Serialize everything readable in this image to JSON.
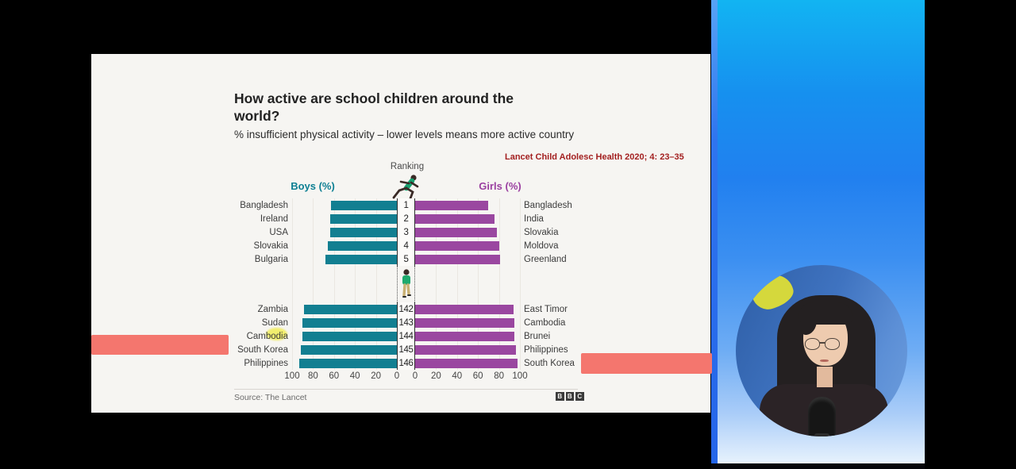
{
  "slide": {
    "title": "How active are school children around the world?",
    "subtitle": "% insufficient physical activity – lower levels means more active country",
    "citation": "Lancet Child Adolesc Health 2020; 4: 23–35",
    "source": "Source: The Lancet",
    "bbc_letters": [
      "B",
      "B",
      "C"
    ]
  },
  "chart_data": {
    "type": "bar",
    "orientation": "horizontal-diverging",
    "title": "How active are school children around the world?",
    "subtitle": "% insufficient physical activity – lower levels means more active country",
    "ranking_label": "Ranking",
    "left_series_label": "Boys (%)",
    "right_series_label": "Girls (%)",
    "xlim": [
      0,
      100
    ],
    "axis_ticks_left": [
      100,
      80,
      60,
      40,
      20,
      0
    ],
    "axis_ticks_right": [
      0,
      20,
      40,
      60,
      80,
      100
    ],
    "grid": true,
    "rows_top": [
      {
        "rank": "1",
        "boys": {
          "country": "Bangladesh",
          "value": 63
        },
        "girls": {
          "country": "Bangladesh",
          "value": 70
        }
      },
      {
        "rank": "2",
        "boys": {
          "country": "Ireland",
          "value": 64
        },
        "girls": {
          "country": "India",
          "value": 76
        }
      },
      {
        "rank": "3",
        "boys": {
          "country": "USA",
          "value": 64
        },
        "girls": {
          "country": "Slovakia",
          "value": 78
        }
      },
      {
        "rank": "4",
        "boys": {
          "country": "Slovakia",
          "value": 66
        },
        "girls": {
          "country": "Moldova",
          "value": 80
        }
      },
      {
        "rank": "5",
        "boys": {
          "country": "Bulgaria",
          "value": 68
        },
        "girls": {
          "country": "Greenland",
          "value": 81
        }
      }
    ],
    "rows_bottom": [
      {
        "rank": "142",
        "boys": {
          "country": "Zambia",
          "value": 89
        },
        "girls": {
          "country": "East Timor",
          "value": 94
        }
      },
      {
        "rank": "143",
        "boys": {
          "country": "Sudan",
          "value": 90
        },
        "girls": {
          "country": "Cambodia",
          "value": 94.5
        }
      },
      {
        "rank": "144",
        "boys": {
          "country": "Cambodia",
          "value": 90.5
        },
        "girls": {
          "country": "Brunei",
          "value": 95
        }
      },
      {
        "rank": "145",
        "boys": {
          "country": "South Korea",
          "value": 91.5
        },
        "girls": {
          "country": "Philippines",
          "value": 96
        }
      },
      {
        "rank": "146",
        "boys": {
          "country": "Philippines",
          "value": 93.5
        },
        "girls": {
          "country": "South Korea",
          "value": 97.5
        }
      }
    ],
    "highlight_marker": {
      "row_rank": "144",
      "side": "boys",
      "country": "Cambodia",
      "shape": "yellow-ellipse"
    }
  },
  "colors": {
    "boys_bar": "#127f91",
    "girls_bar": "#9a47a0",
    "boys_label": "#0d7f93",
    "girls_label": "#9a3fa0",
    "citation_red": "#a32020",
    "pink_overlay": "#f4766e",
    "slide_background": "#f6f5f2",
    "panel_blue_top": "#12b4f2",
    "panel_blue_bottom": "#eef6fe"
  },
  "icons": {
    "runner": "sprinting-runner-icon",
    "sedentary": "sedentary-person-icon",
    "logo": "bbc-logo"
  }
}
